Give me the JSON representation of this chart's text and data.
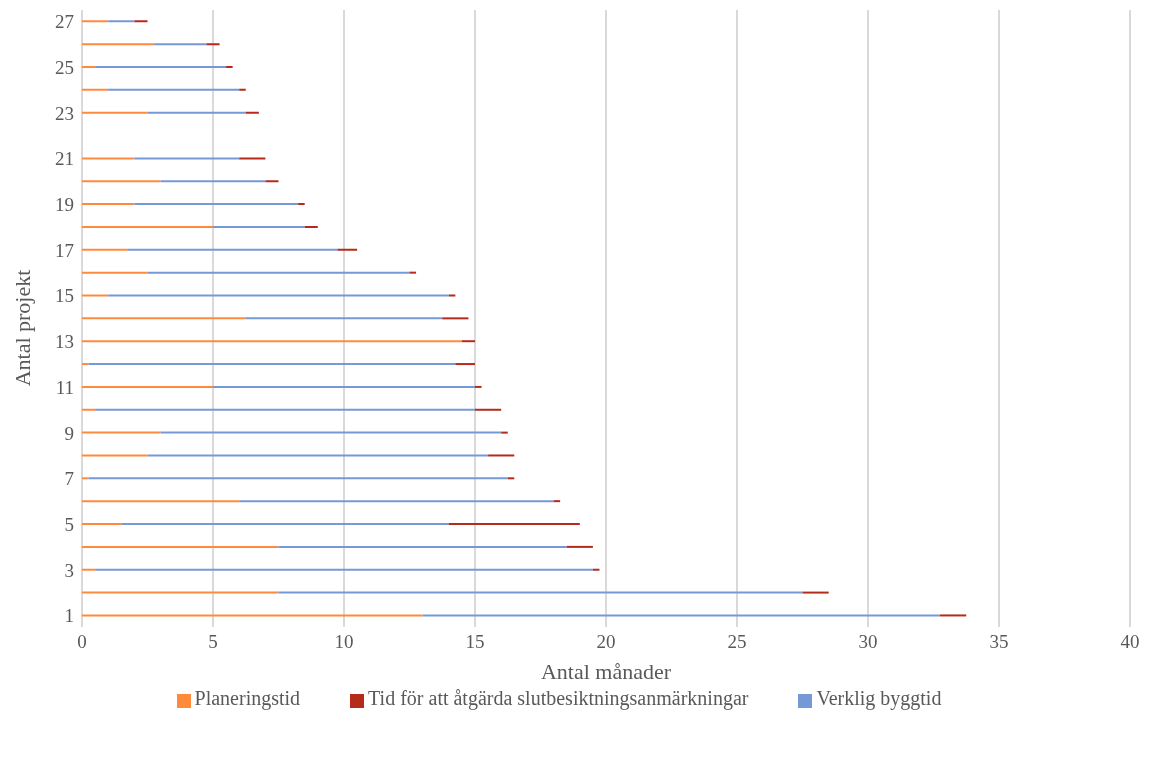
{
  "chart_data": {
    "type": "bar",
    "orientation": "horizontal",
    "stacked": true,
    "xlabel": "Antal månader",
    "ylabel": "Antal projekt",
    "categories": [
      "27",
      null,
      "25",
      null,
      "23",
      null,
      "21",
      null,
      "19",
      null,
      "17",
      null,
      "15",
      null,
      "13",
      null,
      "11",
      null,
      "9",
      null,
      "7",
      null,
      "5",
      null,
      "3",
      null,
      "1"
    ],
    "series": [
      {
        "name": "Planeringstid",
        "color": "#ff8a3b",
        "values": [
          1,
          2.75,
          0.5,
          1,
          2.5,
          null,
          2,
          3,
          2,
          5,
          1.75,
          2.5,
          1,
          6.25,
          14.5,
          0.25,
          5,
          0.5,
          3,
          2.5,
          0.25,
          6,
          1.5,
          7.5,
          0.5,
          7.5,
          13
        ]
      },
      {
        "name": "Verklig byggtid",
        "color": "#7599d7",
        "values": [
          1,
          2,
          5,
          5,
          3.75,
          null,
          4,
          4,
          6.25,
          3.5,
          8,
          10,
          13,
          7.5,
          0,
          14,
          10,
          14.5,
          13,
          13,
          16,
          12,
          12.5,
          11,
          19,
          20,
          19.75
        ]
      },
      {
        "name": "Tid för att åtgärda slutbesiktningsanmärkningar",
        "color": "#b52a1a",
        "values": [
          0.5,
          0.5,
          0.25,
          0.25,
          0.5,
          null,
          1,
          0.5,
          0.25,
          0.5,
          0.75,
          0.25,
          0.25,
          1,
          0.5,
          0.75,
          0.25,
          1,
          0.25,
          1,
          0.25,
          0.25,
          5,
          1,
          0.25,
          1,
          1
        ]
      }
    ],
    "xlim": [
      0,
      40
    ],
    "xticks": [
      0,
      5,
      10,
      15,
      20,
      25,
      30,
      35,
      40
    ],
    "grid": "x",
    "legend": "bottom"
  }
}
